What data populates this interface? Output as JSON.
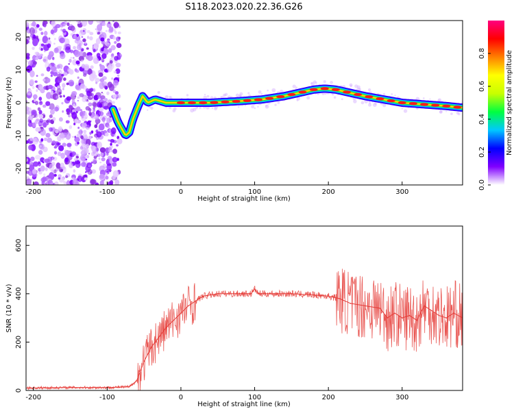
{
  "title": "S118.2023.020.22.36.G26",
  "colors": {
    "snr_line": "#e53935",
    "axis": "#000000",
    "background": "#ffffff"
  },
  "chart_data": [
    {
      "type": "heatmap",
      "xlabel": "Height of straight line (km)",
      "ylabel": "Frequency (Hz)",
      "xlim": [
        -210,
        382
      ],
      "ylim": [
        -25,
        25
      ],
      "x_ticks": [
        -200,
        -100,
        0,
        100,
        200,
        300
      ],
      "y_ticks": [
        -20,
        -10,
        0,
        10,
        20
      ],
      "noise_region_x": [
        -210,
        -90
      ],
      "ridge_points": [
        {
          "x": -92,
          "y": -2
        },
        {
          "x": -85,
          "y": -6
        },
        {
          "x": -80,
          "y": -8
        },
        {
          "x": -75,
          "y": -10
        },
        {
          "x": -70,
          "y": -9
        },
        {
          "x": -65,
          "y": -5
        },
        {
          "x": -58,
          "y": -1
        },
        {
          "x": -52,
          "y": 2
        },
        {
          "x": -45,
          "y": 0
        },
        {
          "x": -35,
          "y": 1
        },
        {
          "x": -20,
          "y": 0
        },
        {
          "x": 0,
          "y": 0
        },
        {
          "x": 40,
          "y": 0
        },
        {
          "x": 80,
          "y": 0.5
        },
        {
          "x": 110,
          "y": 1
        },
        {
          "x": 140,
          "y": 2
        },
        {
          "x": 160,
          "y": 3
        },
        {
          "x": 180,
          "y": 4
        },
        {
          "x": 195,
          "y": 4.3
        },
        {
          "x": 210,
          "y": 4
        },
        {
          "x": 230,
          "y": 3
        },
        {
          "x": 250,
          "y": 2
        },
        {
          "x": 275,
          "y": 1
        },
        {
          "x": 300,
          "y": 0
        },
        {
          "x": 330,
          "y": -0.5
        },
        {
          "x": 360,
          "y": -1
        },
        {
          "x": 382,
          "y": -1.5
        }
      ],
      "colorbar": {
        "label": "Normalized spectral amplitude",
        "range": [
          0,
          1
        ],
        "ticks": [
          0.0,
          0.2,
          0.4,
          0.6,
          0.8
        ],
        "tick_labels": [
          "0.0",
          "0.2",
          "0.4",
          "0.6",
          "0.8"
        ],
        "colors": [
          "#ffffff",
          "#8000ff",
          "#0000ff",
          "#00c8ff",
          "#00ff40",
          "#c8ff00",
          "#ffff00",
          "#ff8000",
          "#ff0000",
          "#ff0080"
        ]
      }
    },
    {
      "type": "line",
      "xlabel": "Height of straight line (km)",
      "ylabel": "SNR (10 * v/v)",
      "xlim": [
        -210,
        382
      ],
      "ylim": [
        0,
        680
      ],
      "x_ticks": [
        -200,
        -100,
        0,
        100,
        200,
        300
      ],
      "y_ticks": [
        0,
        200,
        400,
        600
      ],
      "series": [
        {
          "x": [
            -210,
            -150,
            -100,
            -70,
            -60,
            -50,
            -40,
            -30,
            -20,
            -10,
            0,
            10,
            20,
            30,
            50,
            80,
            95,
            100,
            105,
            120,
            150,
            180,
            200,
            215,
            230,
            250,
            270,
            280,
            290,
            300,
            310,
            320,
            330,
            340,
            350,
            360,
            370,
            382
          ],
          "values": [
            10,
            12,
            12,
            15,
            40,
            120,
            180,
            220,
            260,
            290,
            320,
            350,
            370,
            390,
            400,
            400,
            400,
            420,
            400,
            400,
            400,
            395,
            390,
            380,
            360,
            350,
            340,
            300,
            320,
            300,
            310,
            290,
            350,
            330,
            310,
            300,
            320,
            300
          ]
        }
      ]
    }
  ]
}
